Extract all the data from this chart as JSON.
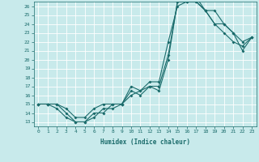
{
  "xlabel": "Humidex (Indice chaleur)",
  "xlim": [
    -0.5,
    23.5
  ],
  "ylim": [
    12.5,
    26.5
  ],
  "bg_color": "#c8eaeb",
  "grid_color": "#ffffff",
  "line_color": "#1a6b6b",
  "line1_x": [
    0,
    1,
    2,
    3,
    4,
    5,
    6,
    7,
    8,
    9,
    10,
    11,
    12,
    13,
    14,
    15,
    16,
    17,
    18,
    19,
    20,
    21,
    22,
    23
  ],
  "line1_y": [
    15,
    15,
    15,
    14,
    13,
    13,
    14,
    14,
    15,
    15,
    16,
    16.5,
    17,
    17,
    20.5,
    26.5,
    26.5,
    26.5,
    25.5,
    24,
    23,
    22,
    21.5,
    22.5
  ],
  "line2_x": [
    0,
    1,
    2,
    3,
    4,
    5,
    6,
    7,
    8,
    9,
    10,
    11,
    12,
    13,
    14,
    15,
    16,
    17,
    18,
    19,
    20,
    21,
    22,
    23
  ],
  "line2_y": [
    15,
    15,
    14.5,
    13.5,
    13,
    13,
    13.5,
    14.5,
    14.5,
    15,
    16.5,
    16,
    17,
    16.5,
    20,
    26.5,
    26.5,
    26.5,
    25.5,
    24,
    24,
    23,
    22,
    22.5
  ],
  "line3_x": [
    0,
    1,
    2,
    3,
    4,
    5,
    6,
    7,
    8,
    9,
    10,
    11,
    12,
    13,
    14,
    15,
    16,
    17,
    18,
    19,
    20,
    21,
    22,
    23
  ],
  "line3_y": [
    15,
    15,
    15,
    14.5,
    13.5,
    13.5,
    14.5,
    15,
    15,
    15,
    17,
    16.5,
    17.5,
    17.5,
    22,
    26,
    26.5,
    27,
    25.5,
    25.5,
    24,
    23,
    21,
    22.5
  ],
  "yticks": [
    13,
    14,
    15,
    16,
    17,
    18,
    19,
    20,
    21,
    22,
    23,
    24,
    25,
    26
  ],
  "xticks": [
    0,
    1,
    2,
    3,
    4,
    5,
    6,
    7,
    8,
    9,
    10,
    11,
    12,
    13,
    14,
    15,
    16,
    17,
    18,
    19,
    20,
    21,
    22,
    23
  ],
  "xlabel_fontsize": 5.5,
  "tick_fontsize": 4.5,
  "linewidth": 0.8,
  "markersize": 2.0
}
